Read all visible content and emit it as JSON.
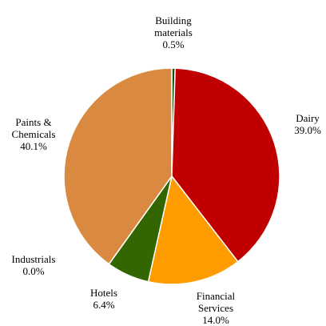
{
  "chart_data": {
    "type": "pie",
    "categories": [
      "Building\nmaterials",
      "Dairy",
      "Financial\nServices",
      "Hotels",
      "Industrials",
      "Paints &\nChemicals"
    ],
    "values": [
      0.5,
      39.0,
      14.0,
      6.4,
      0.0,
      40.1
    ],
    "value_labels": [
      "0.5%",
      "39.0%",
      "14.0%",
      "6.4%",
      "0.0%",
      "40.1%"
    ],
    "colors": [
      "#1f4a12",
      "#c00000",
      "#ff9c00",
      "#336600",
      "#888888",
      "#d98a40"
    ]
  }
}
